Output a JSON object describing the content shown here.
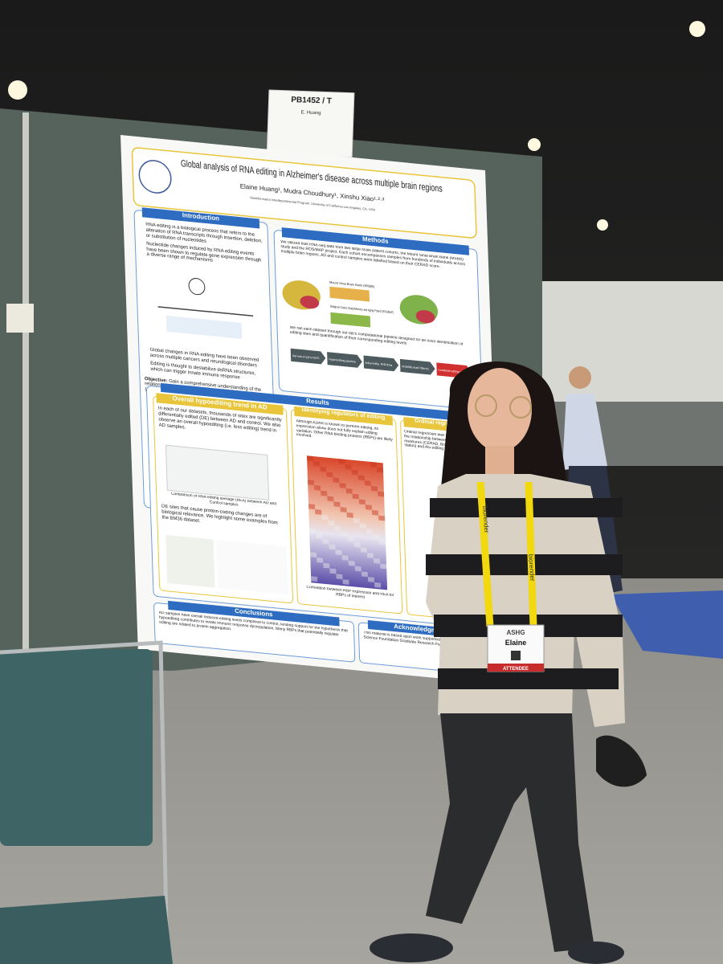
{
  "sign": {
    "code": "PB1452 / T",
    "name": "E. Huang"
  },
  "poster": {
    "title": "Global analysis of RNA editing in Alzheimer's disease across multiple brain regions",
    "authors": "Elaine Huang¹, Mudra Choudhury¹, Xinshu Xiao¹·²·³",
    "affiliations": "¹Bioinformatics Interdepartmental Program, University of California Los Angeles, CA, USA",
    "introduction": {
      "heading": "Introduction",
      "bullets": [
        "RNA editing is a biological process that refers to the alteration of RNA transcripts through insertion, deletion, or substitution of nucleotides",
        "Nucleotide changes induced by RNA editing events have been shown to regulate gene expression through a diverse range of mechanisms",
        "Global changes in RNA editing have been observed across multiple cancers and neurological disorders",
        "Editing is thought to destabilize dsRNA structures, which can trigger innate immune response"
      ],
      "objective_label": "Objective:",
      "objective": "Gain a comprehensive understanding of the relationship between RNA editing and Alzheimer's Disease (AD) pathology."
    },
    "methods": {
      "heading": "Methods",
      "text": "We utilized bulk RNA-seq data from two large-scale patient cohorts, the Mount Sinai Brain Bank (MSBB) study and the ROS/MAP project. Each cohort encompasses samples from hundreds of individuals across multiple brain regions. AD and control samples were labelled based on their CERAD score.",
      "cohort_1": "Mount Sinai Brain Bank (MSBB)",
      "cohort_2": "Religious Orders Study/Memory and Aging Project (ROSMAP)",
      "pipeline_text": "We ran each dataset through our lab's computational pipeline designed for de novo identification of editing sites and quantification of their corresponding editing levels",
      "pipeline": [
        "Align reads to hg19 w/ HISAT2",
        "Hyperediting pipeline",
        "Identify RDDs",
        "Additional filters",
        "Candidate editing sites"
      ]
    },
    "results": {
      "heading": "Results",
      "panel_1": {
        "heading": "Overall hypoediting trend in AD",
        "text": "In each of our datasets, thousands of sites are significantly differentially edited (DE) between AD and control. We also observe an overall hypoediting (i.e. less editing) trend in AD samples.",
        "caption": "Comparison of RNA editing average (REA) between AD and Control samples",
        "text_2": "DE sites that cause protein-coding changes are of biological relevance. We highlight some examples from the BM36 dataset."
      },
      "panel_2": {
        "heading": "Identifying regulators of editing",
        "text": "Although ADAR is known to perform editing, its expression alone does not fully explain editing variation. Other RNA binding proteins (RBPs) are likely involved.",
        "caption": "Correlation between RBP expression and REA for RBPs of interest"
      },
      "panel_3": {
        "heading": "Ordinal regression",
        "text": "Ordinal regression was used to model the relationship between AD clinical measures (CERAD, Braak, cognitive status) and Alu editing levels."
      }
    },
    "conclusions": {
      "heading": "Conclusions",
      "text": "AD samples have overall reduced editing levels compared to control, lending support for the hypothesis that hypoediting contributes to innate immune response dysregulation. Many RBPs that potentially regulate editing are related to protein aggregation."
    },
    "acknowledgments": {
      "heading": "Acknowledgments",
      "text": "This material is based upon work supported by the National Science Foundation Graduate Research Fellowship Program."
    }
  },
  "lanyard": "biorender",
  "badge": {
    "event": "ASHG",
    "name": "Elaine",
    "role": "ATTENDEE"
  }
}
